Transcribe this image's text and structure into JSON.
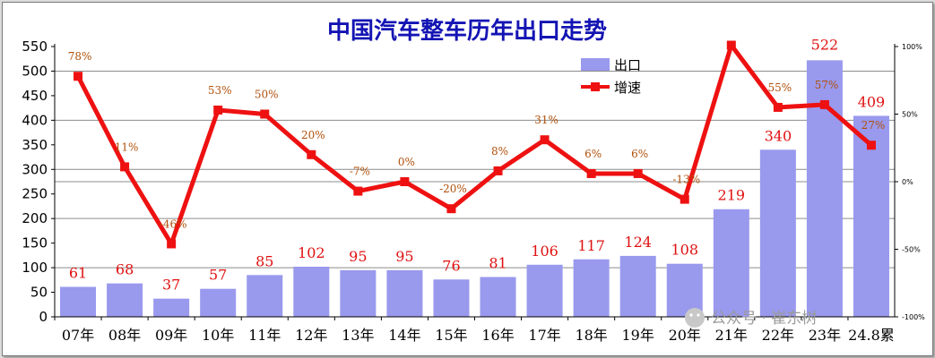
{
  "chart_data": {
    "type": "bar+line",
    "title": "中国汽车整车历年出口走势",
    "categories": [
      "07年",
      "08年",
      "09年",
      "10年",
      "11年",
      "12年",
      "13年",
      "14年",
      "15年",
      "16年",
      "17年",
      "18年",
      "19年",
      "20年",
      "21年",
      "22年",
      "23年",
      "24.8累"
    ],
    "series": [
      {
        "name": "出口",
        "type": "bar",
        "axis": "left",
        "color": "#9999ee",
        "values": [
          61,
          68,
          37,
          57,
          85,
          102,
          95,
          95,
          76,
          81,
          106,
          117,
          124,
          108,
          219,
          340,
          522,
          409
        ],
        "labels": [
          "61",
          "68",
          "37",
          "57",
          "85",
          "102",
          "95",
          "95",
          "76",
          "81",
          "106",
          "117",
          "124",
          "108",
          "219",
          "340",
          "522",
          "409"
        ]
      },
      {
        "name": "增速",
        "type": "line",
        "axis": "right",
        "color": "#ee1111",
        "values": [
          78,
          11,
          -46,
          53,
          50,
          20,
          -7,
          0,
          -20,
          8,
          31,
          6,
          6,
          -13,
          101,
          55,
          57,
          27
        ],
        "labels": [
          "78%",
          "11%",
          "-46%",
          "53%",
          "50%",
          "20%",
          "-7%",
          "0%",
          "-20%",
          "8%",
          "31%",
          "6%",
          "6%",
          "-13%",
          "",
          "55%",
          "57%",
          "27%"
        ]
      }
    ],
    "y_left": {
      "min": 0,
      "max": 550,
      "ticks": [
        "0",
        "50",
        "100",
        "150",
        "200",
        "250",
        "300",
        "350",
        "400",
        "450",
        "500",
        "550"
      ]
    },
    "y_right": {
      "min": -100,
      "max": 100,
      "ticks": [
        "-100%",
        "-50%",
        "0%",
        "50%",
        "100%"
      ]
    },
    "grid": true,
    "legend": "top-right"
  },
  "watermark": "公众号 · 崔东树"
}
